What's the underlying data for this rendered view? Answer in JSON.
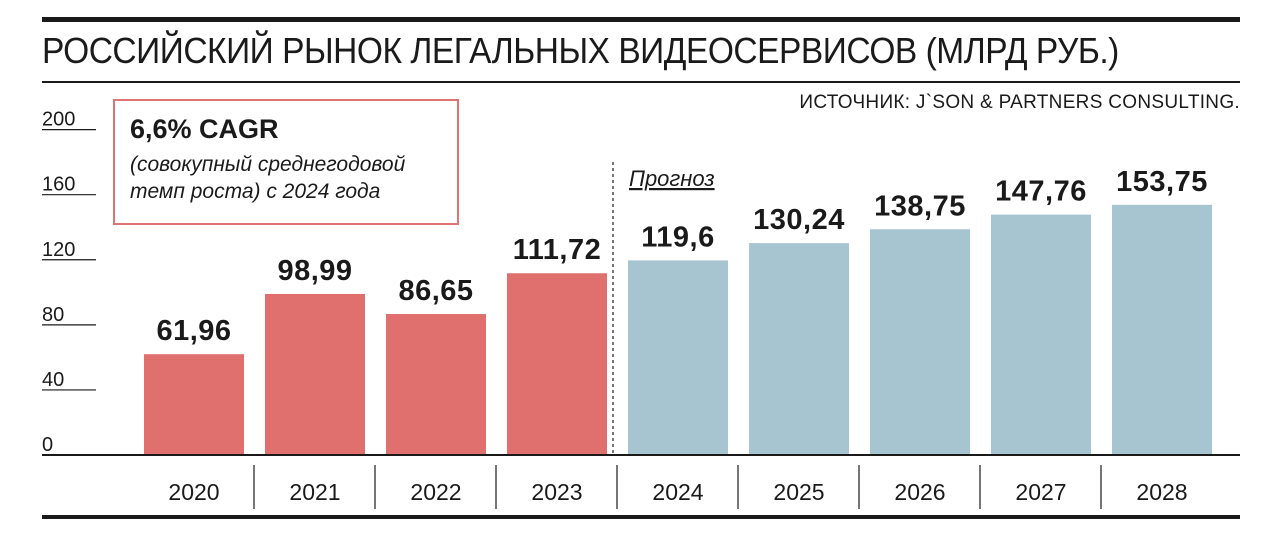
{
  "header": {
    "title": "РОССИЙСКИЙ РЫНОК ЛЕГАЛЬНЫХ ВИДЕОСЕРВИСОВ (МЛРД РУБ.)",
    "source": "ИСТОЧНИК: J`SON & PARTNERS CONSULTING."
  },
  "annotation": {
    "headline": "6,6% CAGR",
    "line1": "(совокупный среднегодовой",
    "line2": "темп роста) с 2024 года"
  },
  "colors": {
    "actual": "#e0706d",
    "forecast": "#a7c4d1",
    "ink": "#1a1a1a",
    "box_border": "#e07472"
  },
  "chart_data": {
    "type": "bar",
    "title": "РОССИЙСКИЙ РЫНОК ЛЕГАЛЬНЫХ ВИДЕОСЕРВИСОВ (МЛРД РУБ.)",
    "categories": [
      "2020",
      "2021",
      "2022",
      "2023",
      "2024",
      "2025",
      "2026",
      "2027",
      "2028"
    ],
    "values": [
      61.96,
      98.99,
      86.65,
      111.72,
      119.6,
      130.24,
      138.75,
      147.76,
      153.75
    ],
    "value_labels": [
      "61,96",
      "98,99",
      "86,65",
      "111,72",
      "119,6",
      "130,24",
      "138,75",
      "147,76",
      "153,75"
    ],
    "forecast_from_index": 4,
    "forecast_label": "Прогноз",
    "yticks": [
      0,
      40,
      80,
      120,
      160,
      200
    ],
    "ylim": [
      0,
      200
    ],
    "grid": false,
    "legend": "none"
  }
}
